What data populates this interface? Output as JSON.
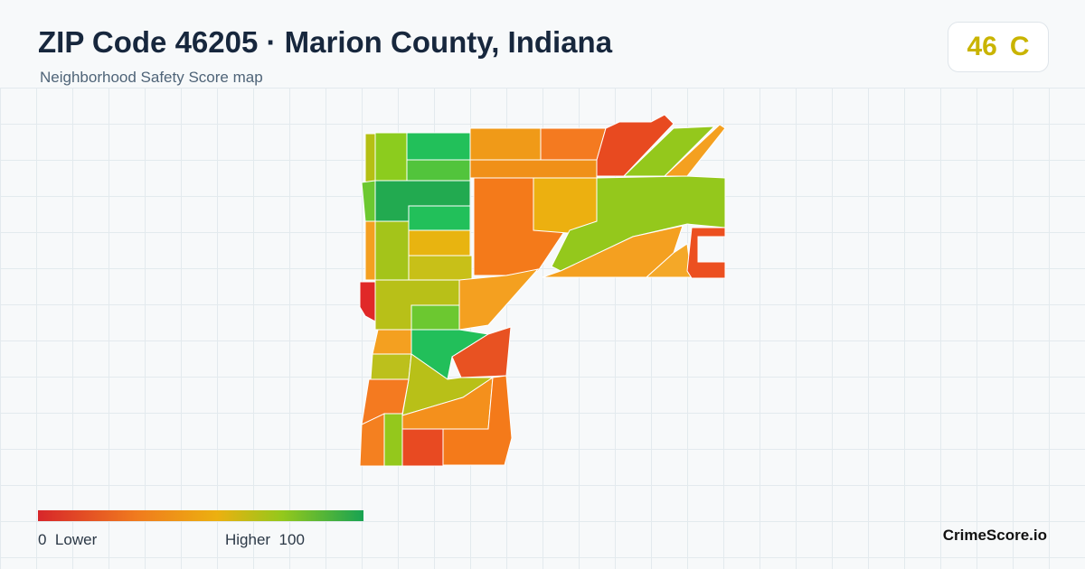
{
  "header": {
    "title": "ZIP Code 46205 · Marion County, Indiana",
    "subtitle": "Neighborhood Safety Score map"
  },
  "score": {
    "value": 46,
    "grade": "C"
  },
  "legend": {
    "min": 0,
    "min_label": "Lower",
    "max_label": "Higher",
    "max": 100
  },
  "footer": {
    "brand": "CrimeScore.io"
  }
}
